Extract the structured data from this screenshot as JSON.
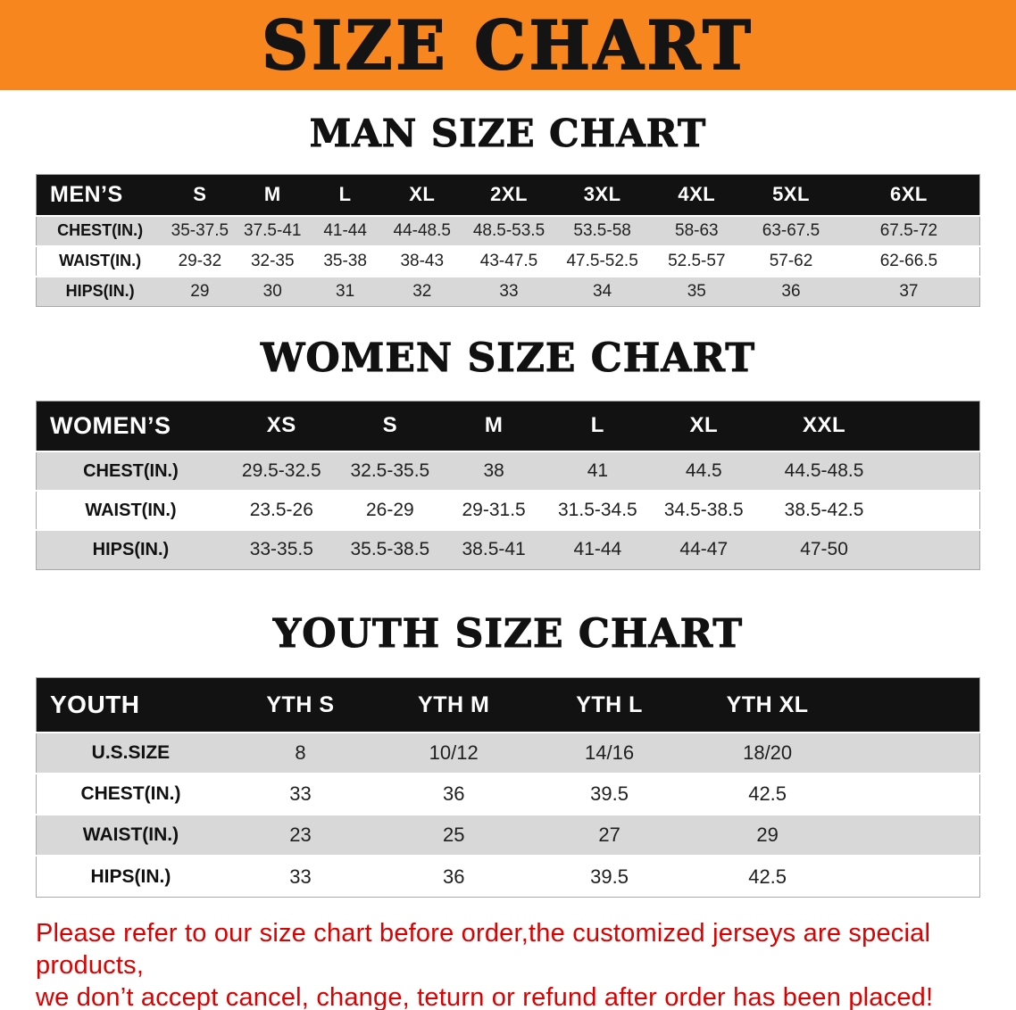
{
  "banner": {
    "title": "SIZE CHART"
  },
  "chart_data": [
    {
      "type": "table",
      "title": "MAN SIZE CHART",
      "columns": [
        "MEN’S",
        "S",
        "M",
        "L",
        "XL",
        "2XL",
        "3XL",
        "4XL",
        "5XL",
        "6XL"
      ],
      "rows": [
        [
          "CHEST(IN.)",
          "35-37.5",
          "37.5-41",
          "41-44",
          "44-48.5",
          "48.5-53.5",
          "53.5-58",
          "58-63",
          "63-67.5",
          "67.5-72"
        ],
        [
          "WAIST(IN.)",
          "29-32",
          "32-35",
          "35-38",
          "38-43",
          "43-47.5",
          "47.5-52.5",
          "52.5-57",
          "57-62",
          "62-66.5"
        ],
        [
          "HIPS(IN.)",
          "29",
          "30",
          "31",
          "32",
          "33",
          "34",
          "35",
          "36",
          "37"
        ]
      ]
    },
    {
      "type": "table",
      "title": "WOMEN SIZE CHART",
      "columns": [
        "WOMEN’S",
        "XS",
        "S",
        "M",
        "L",
        "XL",
        "XXL"
      ],
      "rows": [
        [
          "CHEST(IN.)",
          "29.5-32.5",
          "32.5-35.5",
          "38",
          "41",
          "44.5",
          "44.5-48.5"
        ],
        [
          "WAIST(IN.)",
          "23.5-26",
          "26-29",
          "29-31.5",
          "31.5-34.5",
          "34.5-38.5",
          "38.5-42.5"
        ],
        [
          "HIPS(IN.)",
          "33-35.5",
          "35.5-38.5",
          "38.5-41",
          "41-44",
          "44-47",
          "47-50"
        ]
      ]
    },
    {
      "type": "table",
      "title": "YOUTH SIZE CHART",
      "columns": [
        "YOUTH",
        "YTH S",
        "YTH M",
        "YTH L",
        "YTH XL"
      ],
      "rows": [
        [
          "U.S.SIZE",
          "8",
          "10/12",
          "14/16",
          "18/20"
        ],
        [
          "CHEST(IN.)",
          "33",
          "36",
          "39.5",
          "42.5"
        ],
        [
          "WAIST(IN.)",
          "23",
          "25",
          "27",
          "29"
        ],
        [
          "HIPS(IN.)",
          "33",
          "36",
          "39.5",
          "42.5"
        ]
      ]
    }
  ],
  "disclaimer": {
    "line1": "Please refer to our size chart before order,the customized jerseys are special products,",
    "line2": "we don’t accept cancel, change, teturn or refund after order has been placed!"
  },
  "colors": {
    "banner_orange": "#F6861D",
    "header_black": "#121212",
    "row_gray": "#D8D8D8",
    "disclaimer_red": "#DD0000"
  }
}
